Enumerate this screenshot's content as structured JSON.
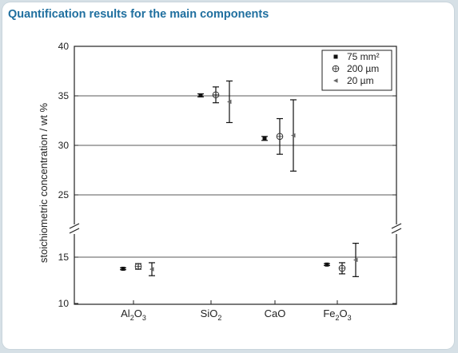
{
  "page_title": "Quantification results for the main components",
  "chart_data": {
    "type": "scatter",
    "title": "",
    "ylabel": "stoichiometric concentration / wt %",
    "xlabel": "",
    "ylim": [
      10,
      40
    ],
    "axis_break": [
      16.8,
      22.5
    ],
    "yticks": [
      "10",
      "15",
      "25",
      "30",
      "35",
      "40"
    ],
    "grid_lines_y": [
      15,
      25,
      30,
      35
    ],
    "categories": [
      {
        "base": "Al",
        "sub1": "2",
        "mid": "O",
        "sub2": "3"
      },
      {
        "base": "SiO",
        "sub1": "2",
        "mid": "",
        "sub2": ""
      },
      {
        "base": "CaO",
        "sub1": "",
        "mid": "",
        "sub2": ""
      },
      {
        "base": "Fe",
        "sub1": "2",
        "mid": "O",
        "sub2": "3"
      }
    ],
    "legend_position": "top-right",
    "series": [
      {
        "name": "75 mm²",
        "marker": "square",
        "values": [
          13.75,
          35.05,
          30.7,
          14.2
        ],
        "errors": [
          0.1,
          0.15,
          0.2,
          0.1
        ]
      },
      {
        "name": "200 µm",
        "marker": "circle-plus",
        "values": [
          14.0,
          35.1,
          30.9,
          13.8
        ],
        "errors": [
          0.3,
          0.8,
          1.8,
          0.6
        ]
      },
      {
        "name": "20 µm",
        "marker": "triangle-left",
        "values": [
          13.7,
          34.4,
          31.0,
          14.7
        ],
        "errors": [
          0.7,
          2.1,
          3.6,
          1.8
        ]
      }
    ]
  }
}
